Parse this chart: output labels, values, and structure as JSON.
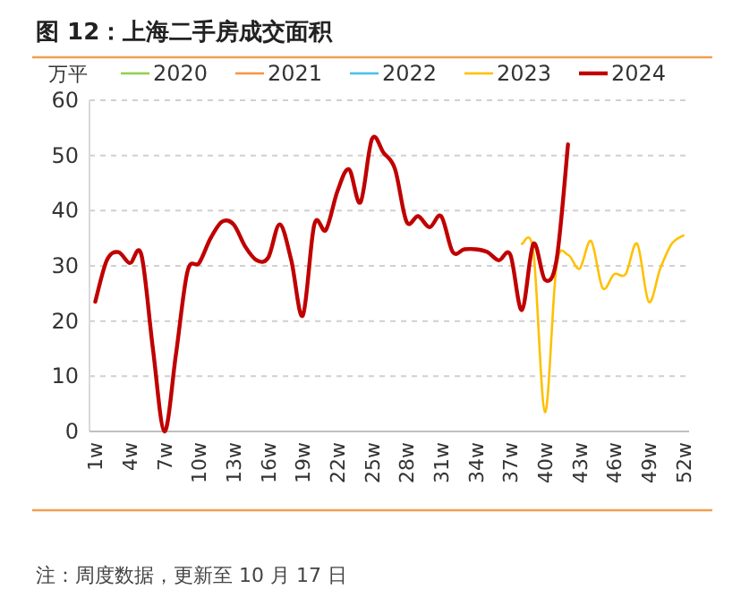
{
  "chart_data": {
    "type": "line",
    "title": "图 12：上海二手房成交面积",
    "ylabel": "万平",
    "categories": [
      "1w",
      null,
      null,
      "4w",
      null,
      null,
      "7w",
      null,
      null,
      "10w",
      null,
      null,
      "13w",
      null,
      null,
      "16w",
      null,
      null,
      "19w",
      null,
      null,
      "22w",
      null,
      null,
      "25w",
      null,
      null,
      "28w",
      null,
      null,
      "31w",
      null,
      null,
      "34w",
      null,
      null,
      "37w",
      null,
      null,
      "40w",
      null,
      null,
      "43w",
      null,
      null,
      "46w",
      null,
      null,
      "49w",
      null,
      null,
      "52w"
    ],
    "series": [
      {
        "name": "2020",
        "color": "#92d050",
        "values": [
          null,
          null,
          null,
          null,
          null,
          null,
          null,
          null,
          null,
          null,
          null,
          null,
          null,
          null,
          null,
          null,
          null,
          null,
          null,
          null,
          null,
          null,
          null,
          null,
          null,
          null,
          null,
          null,
          null,
          null,
          null,
          null,
          null,
          null,
          null,
          null,
          null,
          null,
          null,
          null,
          null,
          null,
          null,
          null,
          null,
          null,
          null,
          null,
          null,
          null,
          null,
          null
        ]
      },
      {
        "name": "2021",
        "color": "#f79646",
        "values": [
          null,
          null,
          null,
          null,
          null,
          null,
          null,
          null,
          null,
          null,
          null,
          null,
          null,
          null,
          null,
          null,
          null,
          null,
          null,
          null,
          null,
          null,
          null,
          null,
          null,
          null,
          null,
          null,
          null,
          null,
          null,
          null,
          null,
          null,
          null,
          null,
          null,
          null,
          null,
          null,
          null,
          null,
          null,
          null,
          null,
          null,
          null,
          null,
          null,
          null,
          null,
          null
        ]
      },
      {
        "name": "2022",
        "color": "#4bc0eb",
        "values": [
          null,
          null,
          null,
          null,
          null,
          null,
          null,
          null,
          null,
          null,
          null,
          null,
          null,
          null,
          null,
          null,
          null,
          null,
          null,
          null,
          null,
          null,
          null,
          null,
          null,
          null,
          null,
          null,
          null,
          null,
          null,
          null,
          null,
          null,
          null,
          null,
          null,
          null,
          null,
          null,
          null,
          null,
          null,
          null,
          null,
          null,
          null,
          null,
          null,
          null,
          null,
          null
        ]
      },
      {
        "name": "2023",
        "color": "#ffc000",
        "values": [
          null,
          null,
          null,
          null,
          null,
          null,
          null,
          null,
          null,
          null,
          null,
          null,
          null,
          null,
          null,
          null,
          null,
          null,
          null,
          null,
          null,
          null,
          null,
          null,
          null,
          null,
          null,
          null,
          null,
          null,
          null,
          null,
          null,
          null,
          null,
          null,
          null,
          34,
          32.5,
          3.5,
          30,
          32,
          29.5,
          34.5,
          26,
          28.5,
          28.5,
          34,
          23.5,
          29.5,
          34,
          35.5
        ]
      },
      {
        "name": "2024",
        "color": "#c00000",
        "values": [
          23.5,
          31,
          32.5,
          30.5,
          32,
          15,
          0,
          14,
          29,
          30.5,
          35,
          38,
          37.5,
          33.5,
          31,
          31.5,
          37.5,
          31,
          21,
          37.5,
          36.5,
          43.5,
          47.5,
          41.5,
          53,
          50.5,
          47.5,
          38,
          39,
          37,
          39,
          32.5,
          33,
          33,
          32.5,
          31,
          32,
          22,
          34,
          27.5,
          31,
          52,
          null,
          null,
          null,
          null,
          null,
          null,
          null,
          null,
          null,
          null
        ]
      }
    ],
    "ylim": [
      0,
      60
    ],
    "yticks": [
      0,
      10,
      20,
      30,
      40,
      50,
      60
    ],
    "grid": "y",
    "legend": "top",
    "annotations": [
      "注：周度数据，更新至 10 月 17 日"
    ]
  }
}
